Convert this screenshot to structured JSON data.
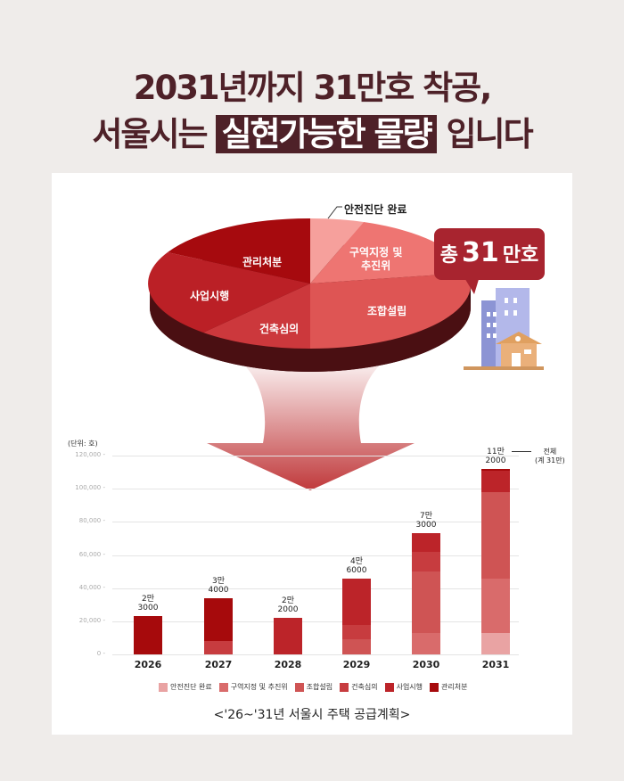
{
  "headline": {
    "line1": "2031년까지 31만호 착공,",
    "line2_prefix": "서울시는",
    "line2_highlight": "실현가능한 물량",
    "line2_suffix": "입니다"
  },
  "pie": {
    "callout": "안전진단 완료",
    "slices": [
      {
        "label": "관리처분",
        "color": "#a60a0e"
      },
      {
        "label": "사업시행",
        "color": "#bb2026"
      },
      {
        "label": "건축심의",
        "color": "#cc383c"
      },
      {
        "label": "조합설립",
        "color": "#de5554"
      },
      {
        "label": "구역지정 및\n추진위",
        "color": "#ee7572"
      },
      {
        "label": "안전진단 완료",
        "color": "#f6a09c"
      }
    ],
    "total_bubble": {
      "prefix": "총",
      "number": "31",
      "suffix": "만호"
    }
  },
  "chart_data": {
    "type": "bar",
    "stacked": true,
    "title": "<'26~'31년 서울시 주택 공급계획>",
    "unit_label": "(단위: 호)",
    "xlabel": "",
    "ylabel": "",
    "ylim": [
      0,
      120000
    ],
    "yticks": [
      "120,000",
      "100,000",
      "80,000",
      "60,000",
      "40,000",
      "20,000",
      "0"
    ],
    "categories": [
      "2026",
      "2027",
      "2028",
      "2029",
      "2030",
      "2031"
    ],
    "totals": [
      23000,
      34000,
      22000,
      46000,
      73000,
      112000
    ],
    "total_labels": [
      [
        "2만",
        "3000"
      ],
      [
        "3만",
        "4000"
      ],
      [
        "2만",
        "2000"
      ],
      [
        "4만",
        "6000"
      ],
      [
        "7만",
        "3000"
      ],
      [
        "11만",
        "2000"
      ]
    ],
    "series": [
      {
        "name": "안전진단 완료",
        "color": "#e9a3a3",
        "values": [
          0,
          0,
          0,
          0,
          0,
          13000
        ]
      },
      {
        "name": "구역지정 및 추진위",
        "color": "#d96b6b",
        "values": [
          0,
          0,
          0,
          0,
          13000,
          33000
        ]
      },
      {
        "name": "조합설립",
        "color": "#cf5454",
        "values": [
          0,
          0,
          0,
          9000,
          37000,
          52000
        ]
      },
      {
        "name": "건축심의",
        "color": "#c73c3f",
        "values": [
          0,
          8000,
          0,
          9000,
          12000,
          0
        ]
      },
      {
        "name": "사업시행",
        "color": "#bc2429",
        "values": [
          0,
          0,
          22000,
          28000,
          11000,
          13000
        ]
      },
      {
        "name": "관리처분",
        "color": "#a60a0c",
        "values": [
          23000,
          26000,
          0,
          0,
          0,
          1000
        ]
      }
    ],
    "annotation": {
      "text_line1": "전체",
      "text_line2": "(계 31만)"
    },
    "legend_position": "bottom",
    "grid": true
  }
}
